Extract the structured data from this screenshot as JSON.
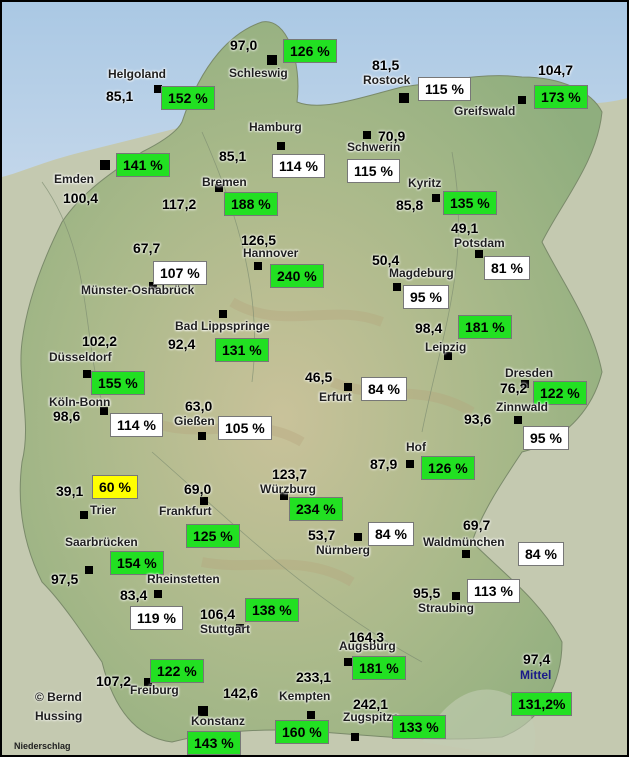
{
  "credit_line1": "© Bernd",
  "credit_line2": "Hussing",
  "footer": "Niederschlag",
  "mittel": {
    "label": "Mittel",
    "value": "97,4",
    "percent": "131,2%"
  },
  "stations": [
    {
      "name": "Schleswig",
      "value": "97,0",
      "percent": "126 %",
      "cls": "g"
    },
    {
      "name": "Helgoland",
      "value": "85,1",
      "percent": "152 %",
      "cls": "g"
    },
    {
      "name": "Rostock",
      "value": "81,5",
      "percent": "115 %",
      "cls": "w"
    },
    {
      "name": "Greifswald",
      "value": "104,7",
      "percent": "173 %",
      "cls": "g"
    },
    {
      "name": "Hamburg",
      "value": "85,1",
      "percent": "114 %",
      "cls": "w"
    },
    {
      "name": "Schwerin",
      "value": "70,9",
      "percent": "115 %",
      "cls": "w"
    },
    {
      "name": "Emden",
      "value": "100,4",
      "percent": "141 %",
      "cls": "g"
    },
    {
      "name": "Bremen",
      "value": "117,2",
      "percent": "188 %",
      "cls": "g"
    },
    {
      "name": "Kyritz",
      "value": "85,8",
      "percent": "135 %",
      "cls": "g"
    },
    {
      "name": "Potsdam",
      "value": "49,1",
      "percent": "81 %",
      "cls": "w"
    },
    {
      "name": "Münster-Osnabrück",
      "value": "67,7",
      "percent": "107 %",
      "cls": "w"
    },
    {
      "name": "Hannover",
      "value": "126,5",
      "percent": "240 %",
      "cls": "g"
    },
    {
      "name": "Magdeburg",
      "value": "50,4",
      "percent": "95 %",
      "cls": "w"
    },
    {
      "name": "Bad Lippspringe",
      "value": "92,4",
      "percent": "131 %",
      "cls": "g"
    },
    {
      "name": "Leipzig",
      "value": "98,4",
      "percent": "181 %",
      "cls": "g"
    },
    {
      "name": "Düsseldorf",
      "value": "102,2",
      "percent": "155 %",
      "cls": "g"
    },
    {
      "name": "Erfurt",
      "value": "46,5",
      "percent": "84 %",
      "cls": "w"
    },
    {
      "name": "Dresden",
      "value": "76,2",
      "percent": "122 %",
      "cls": "g"
    },
    {
      "name": "Köln-Bonn",
      "value": "98,6",
      "percent": "114 %",
      "cls": "w"
    },
    {
      "name": "Gießen",
      "value": "63,0",
      "percent": "105 %",
      "cls": "w"
    },
    {
      "name": "Zinnwald",
      "value": "93,6",
      "percent": "95 %",
      "cls": "w"
    },
    {
      "name": "Hof",
      "value": "87,9",
      "percent": "126 %",
      "cls": "g"
    },
    {
      "name": "Trier",
      "value": "39,1",
      "percent": "60 %",
      "cls": "y"
    },
    {
      "name": "Frankfurt",
      "value": "69,0",
      "percent": "125 %",
      "cls": "g"
    },
    {
      "name": "Würzburg",
      "value": "123,7",
      "percent": "234 %",
      "cls": "g"
    },
    {
      "name": "Nürnberg",
      "value": "53,7",
      "percent": "84 %",
      "cls": "w"
    },
    {
      "name": "Waldmünchen",
      "value": "69,7",
      "percent": "84 %",
      "cls": "w"
    },
    {
      "name": "Saarbrücken",
      "value": "97,5",
      "percent": "154 %",
      "cls": "g"
    },
    {
      "name": "Rheinstetten",
      "value": "83,4",
      "percent": "119 %",
      "cls": "w"
    },
    {
      "name": "Stuttgart",
      "value": "106,4",
      "percent": "138 %",
      "cls": "g"
    },
    {
      "name": "Straubing",
      "value": "95,5",
      "percent": "113 %",
      "cls": "w"
    },
    {
      "name": "Augsburg",
      "value": "164,3",
      "percent": "181 %",
      "cls": "g"
    },
    {
      "name": "Freiburg",
      "value": "107,2",
      "percent": "122 %",
      "cls": "g"
    },
    {
      "name": "Kempten",
      "value": "233,1",
      "percent": "160 %",
      "cls": "g"
    },
    {
      "name": "Zugspitze",
      "value": "242,1",
      "percent": "133 %",
      "cls": "g"
    },
    {
      "name": "Konstanz",
      "value": "142,6",
      "percent": "143 %",
      "cls": "g"
    }
  ]
}
